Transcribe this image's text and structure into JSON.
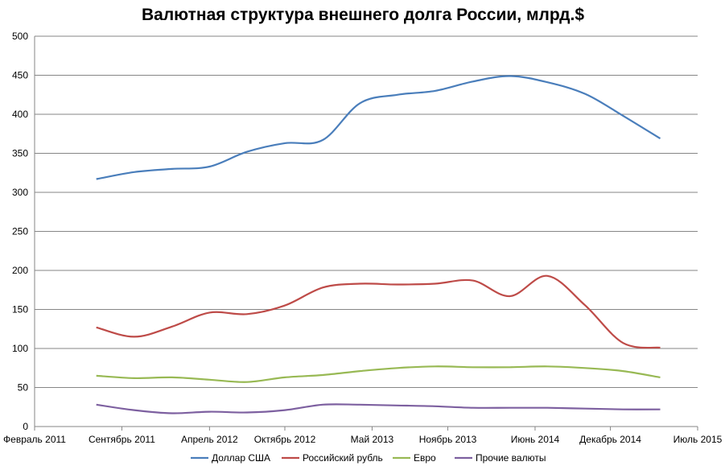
{
  "chart_data": {
    "type": "line",
    "title": "Валютная структура внешнего долга России, млрд.$",
    "xlabel": "",
    "ylabel": "",
    "ylim": [
      0,
      500
    ],
    "yticks": [
      0,
      50,
      100,
      150,
      200,
      250,
      300,
      350,
      400,
      450,
      500
    ],
    "xlim": [
      "2011-02-01",
      "2015-07-01"
    ],
    "xticks": [
      {
        "date": "2011-02-01",
        "label": "Февраль 2011"
      },
      {
        "date": "2011-09-01",
        "label": "Сентябрь 2011"
      },
      {
        "date": "2012-04-01",
        "label": "Апрель 2012"
      },
      {
        "date": "2012-10-01",
        "label": "Октябрь 2012"
      },
      {
        "date": "2013-05-01",
        "label": "Май 2013"
      },
      {
        "date": "2013-11-01",
        "label": "Ноябрь 2013"
      },
      {
        "date": "2014-06-01",
        "label": "Июнь 2014"
      },
      {
        "date": "2014-12-01",
        "label": "Декабрь 2014"
      },
      {
        "date": "2015-07-01",
        "label": "Июль 2015"
      }
    ],
    "grid": "horizontal",
    "legend_position": "bottom",
    "x": [
      "2011-07-01",
      "2011-10-01",
      "2012-01-01",
      "2012-04-01",
      "2012-07-01",
      "2012-10-01",
      "2013-01-01",
      "2013-04-01",
      "2013-07-01",
      "2013-10-01",
      "2014-01-01",
      "2014-04-01",
      "2014-07-01",
      "2014-10-01",
      "2015-01-01",
      "2015-04-01"
    ],
    "series": [
      {
        "name": "Доллар США",
        "color": "#4a7ebb",
        "values": [
          317,
          326,
          330,
          333,
          352,
          363,
          367,
          414,
          425,
          430,
          442,
          449,
          441,
          426,
          398,
          369
        ]
      },
      {
        "name": "Российский рубль",
        "color": "#be4b48",
        "values": [
          127,
          115,
          128,
          146,
          144,
          155,
          178,
          183,
          182,
          183,
          187,
          167,
          193,
          155,
          107,
          101
        ]
      },
      {
        "name": "Евро",
        "color": "#98b954",
        "values": [
          65,
          62,
          63,
          60,
          57,
          63,
          66,
          71,
          75,
          77,
          76,
          76,
          77,
          75,
          71,
          63
        ]
      },
      {
        "name": "Прочие валюты",
        "color": "#7d60a0",
        "values": [
          28,
          21,
          17,
          19,
          18,
          21,
          28,
          28,
          27,
          26,
          24,
          24,
          24,
          23,
          22,
          22
        ]
      }
    ]
  }
}
